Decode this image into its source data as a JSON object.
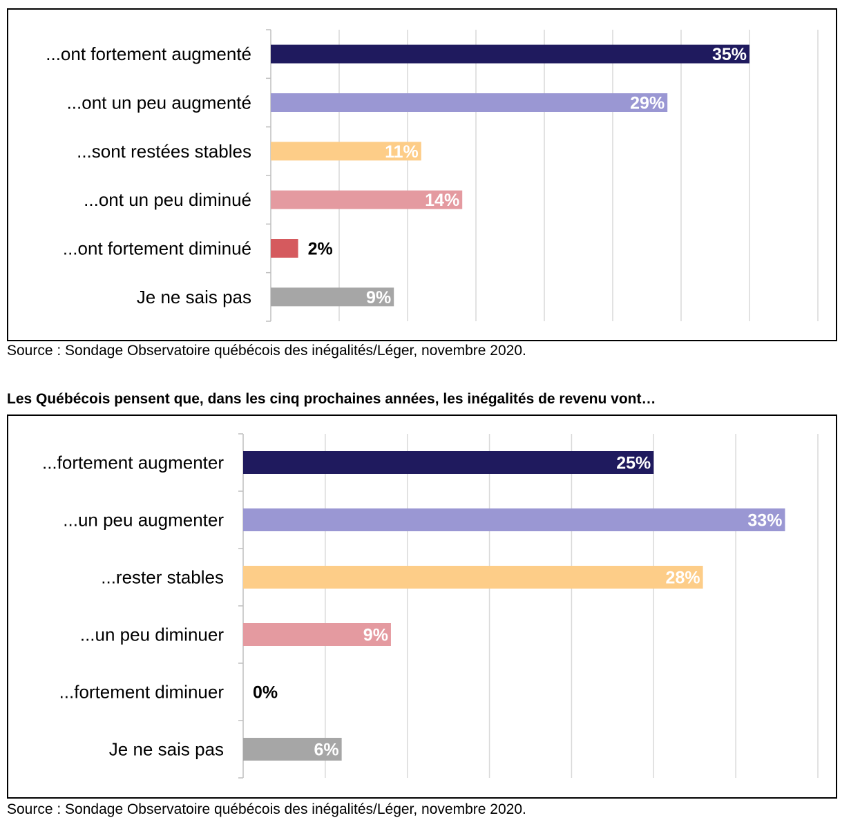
{
  "chart_data": [
    {
      "type": "bar",
      "orientation": "horizontal",
      "categories": [
        "...ont fortement augmenté",
        "...ont un peu augmenté",
        "...sont restées stables",
        "...ont un peu diminué",
        "...ont fortement diminué",
        "Je ne sais pas"
      ],
      "values": [
        35,
        29,
        11,
        14,
        2,
        9
      ],
      "value_labels": [
        "35%",
        "29%",
        "11%",
        "14%",
        "2%",
        "9%"
      ],
      "colors": [
        "#1f1a5e",
        "#9a97d3",
        "#fdcd88",
        "#e49aa0",
        "#d55a5e",
        "#a6a6a6"
      ],
      "xlim": [
        0,
        40
      ],
      "grid": true,
      "source": "Source : Sondage Observatoire québécois des inégalités/Léger, novembre 2020."
    },
    {
      "type": "bar",
      "orientation": "horizontal",
      "title": "Les Québécois pensent que, dans les cinq prochaines années, les inégalités de revenu vont…",
      "categories": [
        "...fortement augmenter",
        "...un peu augmenter",
        "...rester stables",
        "...un peu diminuer",
        "...fortement diminuer",
        "Je ne sais pas"
      ],
      "values": [
        25,
        33,
        28,
        9,
        0,
        6
      ],
      "value_labels": [
        "25%",
        "33%",
        "28%",
        "9%",
        "0%",
        "6%"
      ],
      "colors": [
        "#1f1a5e",
        "#9a97d3",
        "#fdcd88",
        "#e49aa0",
        "#d55a5e",
        "#a6a6a6"
      ],
      "xlim": [
        0,
        35
      ],
      "grid": true,
      "source": "Source : Sondage Observatoire québécois des inégalités/Léger, novembre 2020."
    }
  ]
}
